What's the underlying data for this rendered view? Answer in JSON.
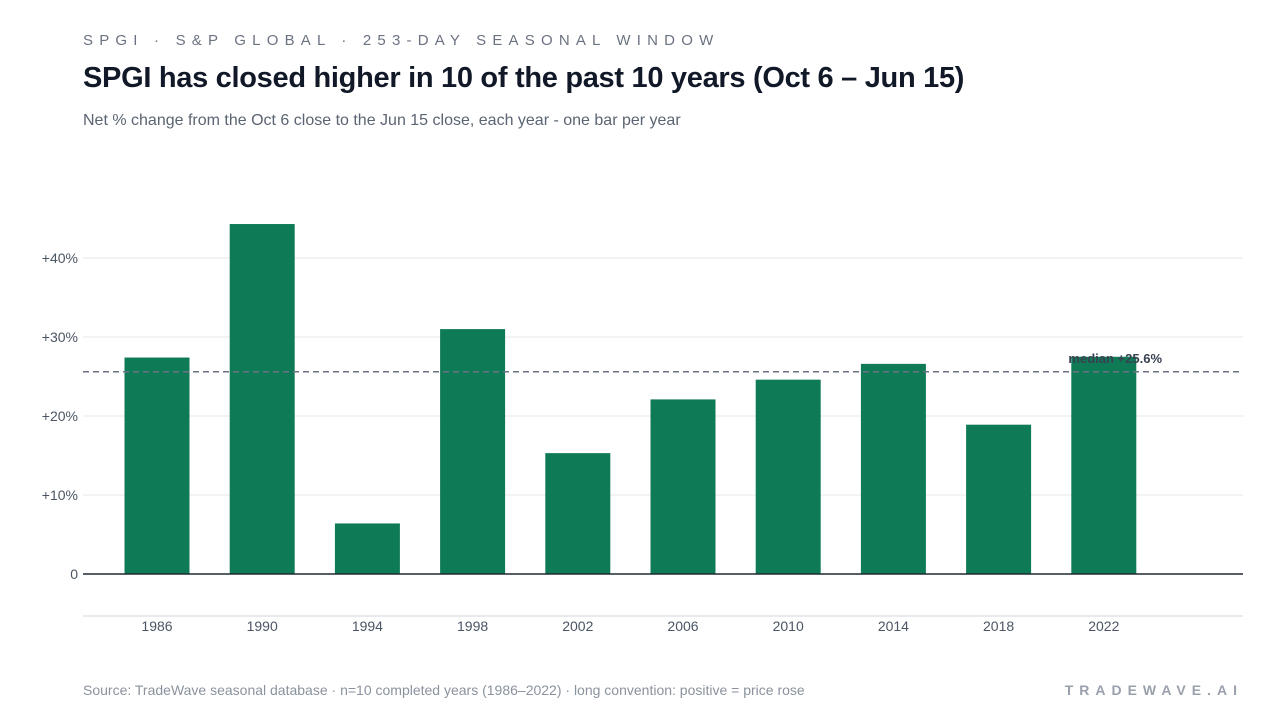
{
  "header": {
    "eyebrow": "SPGI · S&P GLOBAL · 253-DAY SEASONAL WINDOW",
    "title": "SPGI has closed higher in 10 of the past 10 years (Oct 6 – Jun 15)",
    "subtitle": "Net % change from the Oct 6 close to the Jun 15 close, each year - one bar per year"
  },
  "footer": {
    "source": "Source: TradeWave seasonal database · n=10 completed years (1986–2022) · long convention: positive = price rose",
    "brand": "TRADEWAVE.AI"
  },
  "colors": {
    "bar": "#0f7b56",
    "grid": "#e5e7eb",
    "zero_line": "#1f2937",
    "median_line": "#6b7280",
    "axis_text": "#4b5563"
  },
  "chart_data": {
    "type": "bar",
    "categories": [
      "1986",
      "1990",
      "1994",
      "1998",
      "2002",
      "2006",
      "2010",
      "2014",
      "2018",
      "2022"
    ],
    "values": [
      27.4,
      44.3,
      6.4,
      31.0,
      15.3,
      22.1,
      24.6,
      26.6,
      18.9,
      27.5
    ],
    "ylim": [
      0,
      50
    ],
    "yticks": [
      0,
      10,
      20,
      30,
      40
    ],
    "ytick_labels": [
      "0",
      "+10%",
      "+20%",
      "+30%",
      "+40%"
    ],
    "median": 25.6,
    "median_label": "median +25.6%",
    "grid": true,
    "xlabel": "",
    "ylabel": ""
  }
}
